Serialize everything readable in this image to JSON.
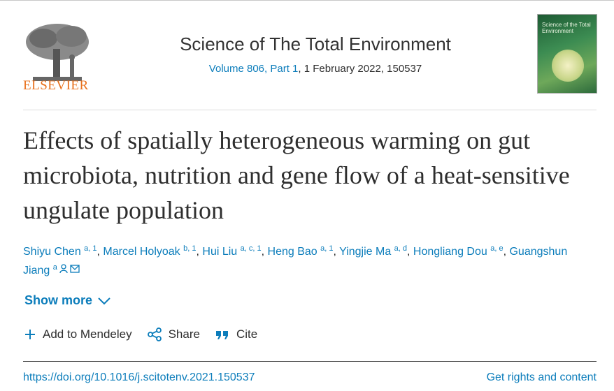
{
  "header": {
    "publisher": "ELSEVIER",
    "journal": "Science of The Total Environment",
    "volume": "Volume 806, Part 1",
    "issue_date": ", 1 February 2022, 150537",
    "cover_title": "Science of the Total Environment"
  },
  "article": {
    "title": "Effects of spatially heterogeneous warming on gut microbiota, nutrition and gene flow of a heat-sensitive ungulate population",
    "author_separator": ", ",
    "authors": [
      {
        "name": "Shiyu Chen",
        "affiliations": "a, 1"
      },
      {
        "name": "Marcel Holyoak",
        "affiliations": "b, 1"
      },
      {
        "name": "Hui Liu",
        "affiliations": "a, c, 1"
      },
      {
        "name": "Heng Bao",
        "affiliations": "a, 1"
      },
      {
        "name": "Yingjie Ma",
        "affiliations": "a, d"
      },
      {
        "name": "Hongliang Dou",
        "affiliations": "a, e"
      },
      {
        "name": "Guangshun Jiang",
        "affiliations": "a"
      }
    ],
    "show_more": "Show more"
  },
  "actions": [
    "Add to Mendeley",
    "Share",
    "Cite"
  ],
  "doi": "https://doi.org/10.1016/j.scitotenv.2021.150537",
  "rights": "Get rights and content"
}
